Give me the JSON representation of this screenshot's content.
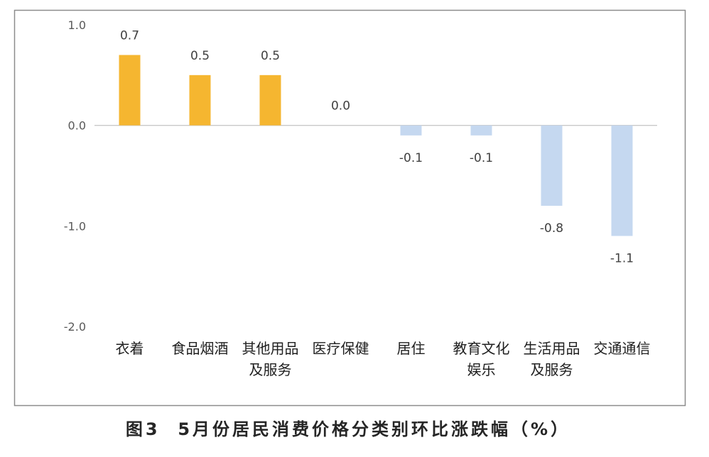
{
  "chart_data": {
    "type": "bar",
    "title": "图3  5月份居民消费价格分类别环比涨跌幅（%）",
    "xlabel": "",
    "ylabel": "",
    "categories": [
      "衣着",
      "食品烟酒",
      "其他用品及服务",
      "医疗保健",
      "居住",
      "教育文化娱乐",
      "生活用品及服务",
      "交通通信"
    ],
    "values": [
      0.7,
      0.5,
      0.5,
      0.0,
      -0.1,
      -0.1,
      -0.8,
      -1.1
    ],
    "data_labels": [
      "0.7",
      "0.5",
      "0.5",
      "0.0",
      "-0.1",
      "-0.1",
      "-0.8",
      "-1.1"
    ],
    "ylim": [
      -2.0,
      1.0
    ],
    "yticks": [
      1.0,
      0.0,
      -1.0,
      -2.0
    ],
    "ytick_labels": [
      "1.0",
      "0.0",
      "-1.0",
      "-2.0"
    ],
    "grid": false,
    "legend": false,
    "colors": {
      "positive": "#F5B630",
      "negative": "#C5D8F0"
    }
  }
}
